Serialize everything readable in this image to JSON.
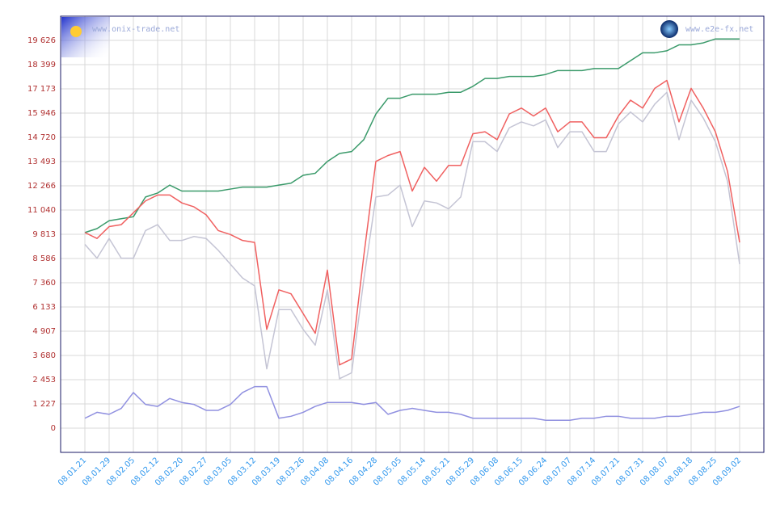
{
  "chart_data": {
    "type": "line",
    "watermarks": [
      "www.onix-trade.net",
      "www.e2e-fx.net"
    ],
    "categories": [
      "08.01.21",
      null,
      "08.01.29",
      null,
      "08.02.05",
      null,
      "08.02.12",
      null,
      "08.02.20",
      null,
      "08.02.27",
      null,
      "08.03.05",
      null,
      "08.03.12",
      null,
      "08.03.19",
      null,
      "08.03.26",
      null,
      "08.04.08",
      null,
      "08.04.16",
      null,
      "08.04.28",
      null,
      "08.05.05",
      null,
      "08.05.14",
      null,
      "08.05.21",
      null,
      "08.05.29",
      null,
      "08.06.08",
      null,
      "08.06.15",
      null,
      "08.06.24",
      null,
      "08.07.07",
      null,
      "08.07.14",
      null,
      "08.07.21",
      null,
      "08.07.31",
      null,
      "08.08.07",
      null,
      "08.08.18",
      null,
      "08.08.25",
      null,
      "08.09.02"
    ],
    "series": [
      {
        "color": "#3a9a6a",
        "values": [
          9900,
          10100,
          10500,
          10600,
          10700,
          11700,
          11900,
          12300,
          12000,
          12000,
          12000,
          12000,
          12100,
          12200,
          12200,
          12200,
          12300,
          12400,
          12800,
          12900,
          13500,
          13900,
          14000,
          14600,
          15900,
          16700,
          16700,
          16900,
          16900,
          16900,
          17000,
          17000,
          17300,
          17700,
          17700,
          17800,
          17800,
          17800,
          17900,
          18100,
          18100,
          18100,
          18200,
          18200,
          18200,
          18600,
          19000,
          19000,
          19100,
          19400,
          19400,
          19500,
          19700,
          19700,
          19700
        ]
      },
      {
        "color": "#c4c4d4",
        "values": [
          9300,
          8600,
          9600,
          8600,
          8600,
          10000,
          10300,
          9500,
          9500,
          9700,
          9600,
          9000,
          8300,
          7600,
          7200,
          3000,
          6000,
          6000,
          5000,
          4200,
          7000,
          2500,
          2800,
          7500,
          11700,
          11800,
          12300,
          10200,
          11500,
          11400,
          11100,
          11700,
          14500,
          14500,
          14000,
          15200,
          15500,
          15300,
          15600,
          14200,
          15000,
          15000,
          14000,
          14000,
          15400,
          16000,
          15500,
          16400,
          17000,
          14600,
          16600,
          15700,
          14500,
          12500,
          8300
        ]
      },
      {
        "color": "#f06060",
        "values": [
          9900,
          9600,
          10200,
          10300,
          10900,
          11500,
          11800,
          11800,
          11400,
          11200,
          10800,
          10000,
          9800,
          9500,
          9400,
          5000,
          7000,
          6800,
          5800,
          4800,
          8000,
          3200,
          3500,
          8700,
          13500,
          13800,
          14000,
          12000,
          13200,
          12500,
          13300,
          13300,
          14900,
          15000,
          14600,
          15900,
          16200,
          15800,
          16200,
          15000,
          15500,
          15500,
          14700,
          14700,
          15800,
          16600,
          16200,
          17200,
          17600,
          15500,
          17200,
          16200,
          15000,
          13000,
          9400
        ]
      },
      {
        "color": "#9090e0",
        "values": [
          500,
          800,
          700,
          1000,
          1800,
          1200,
          1100,
          1500,
          1300,
          1200,
          900,
          900,
          1200,
          1800,
          2100,
          2100,
          500,
          600,
          800,
          1100,
          1300,
          1300,
          1300,
          1200,
          1300,
          700,
          900,
          1000,
          900,
          800,
          800,
          700,
          500,
          500,
          500,
          500,
          500,
          500,
          400,
          400,
          400,
          500,
          500,
          600,
          600,
          500,
          500,
          500,
          600,
          600,
          700,
          800,
          800,
          900,
          1100
        ]
      }
    ],
    "ylim": [
      -1227,
      20853
    ],
    "yticks": [
      0,
      {
        "value": 1227,
        "label": "1 227"
      },
      {
        "value": 2453,
        "label": "2 453"
      },
      {
        "value": 3680,
        "label": "3 680"
      },
      {
        "value": 4907,
        "label": "4 907"
      },
      {
        "value": 6133,
        "label": "6 133"
      },
      {
        "value": 7360,
        "label": "7 360"
      },
      {
        "value": 8586,
        "label": "8 586"
      },
      {
        "value": 9813,
        "label": "9 813"
      },
      {
        "value": 11040,
        "label": "11 040"
      },
      {
        "value": 12266,
        "label": "12 266"
      },
      {
        "value": 13493,
        "label": "13 493"
      },
      {
        "value": 14720,
        "label": "14 720"
      },
      {
        "value": 15946,
        "label": "15 946"
      },
      {
        "value": 17173,
        "label": "17 173"
      },
      {
        "value": 18399,
        "label": "18 399"
      },
      {
        "value": 19626,
        "label": "19 626"
      }
    ],
    "grid": true
  }
}
